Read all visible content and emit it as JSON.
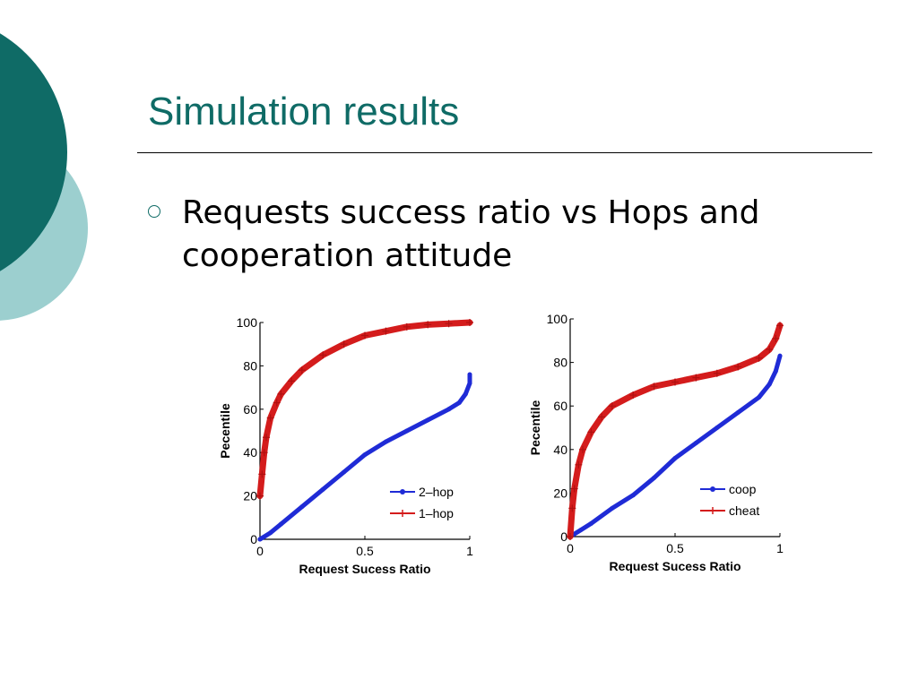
{
  "slide": {
    "title": "Simulation results",
    "bullet": "Requests success ratio vs Hops and cooperation attitude"
  },
  "colors": {
    "accent": "#0f6b66",
    "accent_light": "#9ccfcf",
    "blue_series": "#1f2bd6",
    "red_series": "#d41c1c"
  },
  "chart_data": [
    {
      "type": "line",
      "xlabel": "Request Sucess Ratio",
      "ylabel": "Pecentile",
      "xlim": [
        0,
        1
      ],
      "ylim": [
        0,
        100
      ],
      "xticks": [
        "0",
        "0.5",
        "1"
      ],
      "yticks": [
        "0",
        "20",
        "40",
        "60",
        "80",
        "100"
      ],
      "legend_position": "bottom-right",
      "series": [
        {
          "name": "2–hop",
          "color": "#1f2bd6",
          "marker": "dot",
          "x": [
            0,
            0.05,
            0.1,
            0.2,
            0.3,
            0.4,
            0.5,
            0.6,
            0.7,
            0.8,
            0.9,
            0.95,
            0.98,
            1.0,
            1.0
          ],
          "y": [
            0,
            3,
            7,
            15,
            23,
            31,
            39,
            45,
            50,
            55,
            60,
            63,
            67,
            72,
            76
          ]
        },
        {
          "name": "1–hop",
          "color": "#d41c1c",
          "marker": "plus",
          "x": [
            0,
            0.01,
            0.02,
            0.03,
            0.05,
            0.08,
            0.1,
            0.15,
            0.2,
            0.3,
            0.4,
            0.5,
            0.6,
            0.7,
            0.8,
            0.9,
            1.0
          ],
          "y": [
            20,
            30,
            40,
            47,
            56,
            63,
            67,
            73,
            78,
            85,
            90,
            94,
            96,
            98,
            99,
            99.5,
            100
          ]
        }
      ]
    },
    {
      "type": "line",
      "xlabel": "Request Sucess Ratio",
      "ylabel": "Pecentile",
      "xlim": [
        0,
        1
      ],
      "ylim": [
        0,
        100
      ],
      "xticks": [
        "0",
        "0.5",
        "1"
      ],
      "yticks": [
        "0",
        "20",
        "40",
        "60",
        "80",
        "100"
      ],
      "legend_position": "bottom-right",
      "series": [
        {
          "name": "coop",
          "color": "#1f2bd6",
          "marker": "dot",
          "x": [
            0,
            0.05,
            0.1,
            0.2,
            0.3,
            0.4,
            0.5,
            0.6,
            0.7,
            0.8,
            0.9,
            0.95,
            0.98,
            1.0
          ],
          "y": [
            0,
            3,
            6,
            13,
            19,
            27,
            36,
            43,
            50,
            57,
            64,
            70,
            76,
            83
          ]
        },
        {
          "name": "cheat",
          "color": "#d41c1c",
          "marker": "plus",
          "x": [
            0,
            0.01,
            0.02,
            0.04,
            0.06,
            0.1,
            0.15,
            0.2,
            0.3,
            0.4,
            0.5,
            0.6,
            0.7,
            0.8,
            0.9,
            0.95,
            0.98,
            1.0
          ],
          "y": [
            0,
            13,
            22,
            33,
            40,
            48,
            55,
            60,
            65,
            69,
            71,
            73,
            75,
            78,
            82,
            86,
            91,
            97
          ]
        }
      ]
    }
  ]
}
